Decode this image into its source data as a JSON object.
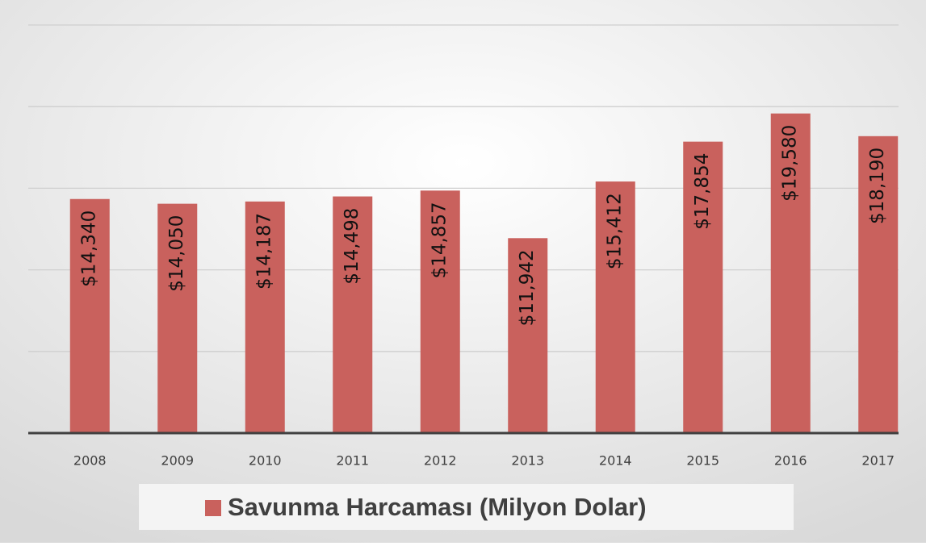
{
  "chart_data": {
    "type": "bar",
    "categories": [
      "2008",
      "2009",
      "2010",
      "2011",
      "2012",
      "2013",
      "2014",
      "2015",
      "2016",
      "2017"
    ],
    "series": [
      {
        "name": "Savunma Harcaması (Milyon Dolar)",
        "color": "#c9615d",
        "values": [
          14340,
          14050,
          14187,
          14498,
          14857,
          11942,
          15412,
          17854,
          19580,
          18190
        ],
        "value_labels": [
          "$14,340",
          "$14,050",
          "$14,187",
          "$14,498",
          "$14,857",
          "$11,942",
          "$15,412",
          "$17,854",
          "$19,580",
          "$18,190"
        ]
      }
    ],
    "ylim": [
      0,
      25000
    ],
    "yticks": [
      0,
      5000,
      10000,
      15000,
      20000,
      25000
    ],
    "grid": true,
    "legend": "bottom"
  }
}
